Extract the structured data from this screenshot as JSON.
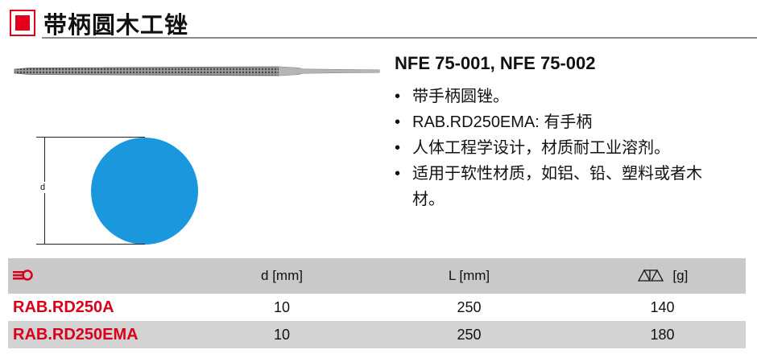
{
  "title": "带柄圆木工锉",
  "standard": "NFE 75-001, NFE 75-002",
  "bullets": [
    "带手柄圆锉。",
    "RAB.RD250EMA: 有手柄",
    "人体工程学设计，材质耐工业溶剂。",
    "适用于软性材质，如铝、铅、塑料或者木材。"
  ],
  "diagram": {
    "dimension_label": "d",
    "circle_color": "#1b97dd"
  },
  "table": {
    "headers": {
      "ref_icon": "reference-icon",
      "d": "d [mm]",
      "L": "L [mm]",
      "weight_icon": "scale-icon",
      "weight": "[g]"
    },
    "rows": [
      {
        "ref": "RAB.RD250A",
        "d": "10",
        "L": "250",
        "g": "140"
      },
      {
        "ref": "RAB.RD250EMA",
        "d": "10",
        "L": "250",
        "g": "180"
      }
    ]
  },
  "colors": {
    "accent": "#e2001a",
    "header_bg": "#c9c9c9"
  }
}
